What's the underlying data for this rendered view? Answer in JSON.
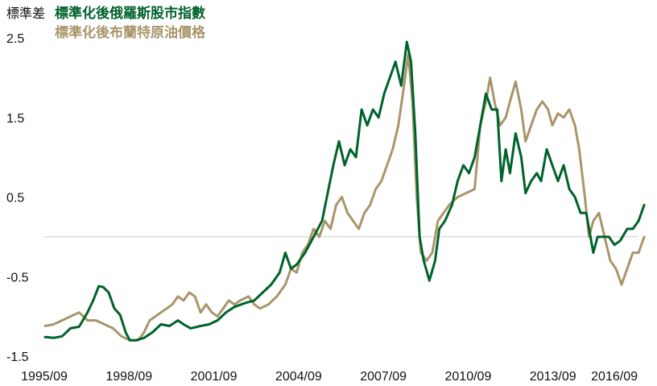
{
  "chart_data": {
    "type": "line",
    "ylabel": "標準差",
    "ylim": [
      -1.5,
      2.5
    ],
    "yticks": [
      2.5,
      1.5,
      0.5,
      -0.5,
      -1.5
    ],
    "ytick_labels": [
      "2.5",
      "1.5",
      "0.5",
      "-0.5",
      "-1.5"
    ],
    "xlim": [
      1995.67,
      2016.67
    ],
    "xticks": [
      1995.67,
      1998.67,
      2001.67,
      2004.67,
      2007.67,
      2010.67,
      2013.67,
      2016.67
    ],
    "xtick_labels": [
      "1995/09",
      "1998/09",
      "2001/09",
      "2004/09",
      "2007/09",
      "2010/09",
      "2013/09",
      "2016/09"
    ],
    "zero_line": true,
    "grid": false,
    "legend_position": "top-left",
    "series": [
      {
        "name": "標準化後俄羅斯股市指數",
        "color": "#00622B",
        "points": [
          [
            1995.7,
            -1.26
          ],
          [
            1996.0,
            -1.27
          ],
          [
            1996.3,
            -1.25
          ],
          [
            1996.6,
            -1.15
          ],
          [
            1996.9,
            -1.13
          ],
          [
            1997.2,
            -0.95
          ],
          [
            1997.4,
            -0.8
          ],
          [
            1997.6,
            -0.62
          ],
          [
            1997.75,
            -0.63
          ],
          [
            1997.95,
            -0.7
          ],
          [
            1998.15,
            -0.9
          ],
          [
            1998.35,
            -0.98
          ],
          [
            1998.55,
            -1.2
          ],
          [
            1998.7,
            -1.3
          ],
          [
            1998.9,
            -1.3
          ],
          [
            1999.2,
            -1.27
          ],
          [
            1999.5,
            -1.2
          ],
          [
            1999.8,
            -1.1
          ],
          [
            2000.1,
            -1.12
          ],
          [
            2000.4,
            -1.05
          ],
          [
            2000.6,
            -1.1
          ],
          [
            2000.85,
            -1.15
          ],
          [
            2001.2,
            -1.12
          ],
          [
            2001.5,
            -1.1
          ],
          [
            2001.8,
            -1.05
          ],
          [
            2002.1,
            -0.95
          ],
          [
            2002.4,
            -0.88
          ],
          [
            2002.8,
            -0.83
          ],
          [
            2003.1,
            -0.8
          ],
          [
            2003.4,
            -0.7
          ],
          [
            2003.7,
            -0.6
          ],
          [
            2004.0,
            -0.45
          ],
          [
            2004.2,
            -0.2
          ],
          [
            2004.4,
            -0.4
          ],
          [
            2004.6,
            -0.35
          ],
          [
            2004.9,
            -0.2
          ],
          [
            2005.2,
            0.0
          ],
          [
            2005.5,
            0.2
          ],
          [
            2005.7,
            0.55
          ],
          [
            2005.9,
            0.9
          ],
          [
            2006.1,
            1.2
          ],
          [
            2006.3,
            0.9
          ],
          [
            2006.5,
            1.1
          ],
          [
            2006.7,
            1.0
          ],
          [
            2006.9,
            1.6
          ],
          [
            2007.1,
            1.4
          ],
          [
            2007.3,
            1.6
          ],
          [
            2007.5,
            1.5
          ],
          [
            2007.7,
            1.8
          ],
          [
            2007.9,
            2.0
          ],
          [
            2008.1,
            2.2
          ],
          [
            2008.3,
            1.9
          ],
          [
            2008.5,
            2.45
          ],
          [
            2008.65,
            2.2
          ],
          [
            2008.8,
            1.3
          ],
          [
            2008.95,
            0.0
          ],
          [
            2009.1,
            -0.3
          ],
          [
            2009.3,
            -0.55
          ],
          [
            2009.5,
            -0.3
          ],
          [
            2009.65,
            0.1
          ],
          [
            2009.85,
            0.2
          ],
          [
            2010.1,
            0.4
          ],
          [
            2010.3,
            0.7
          ],
          [
            2010.5,
            0.9
          ],
          [
            2010.7,
            0.8
          ],
          [
            2010.9,
            1.0
          ],
          [
            2011.1,
            1.4
          ],
          [
            2011.3,
            1.8
          ],
          [
            2011.5,
            1.6
          ],
          [
            2011.7,
            1.6
          ],
          [
            2011.85,
            0.7
          ],
          [
            2012.0,
            1.1
          ],
          [
            2012.15,
            0.8
          ],
          [
            2012.35,
            1.3
          ],
          [
            2012.55,
            1.0
          ],
          [
            2012.7,
            0.55
          ],
          [
            2012.9,
            0.7
          ],
          [
            2013.1,
            0.8
          ],
          [
            2013.25,
            0.7
          ],
          [
            2013.45,
            1.1
          ],
          [
            2013.65,
            0.9
          ],
          [
            2013.85,
            0.7
          ],
          [
            2014.05,
            0.9
          ],
          [
            2014.25,
            0.6
          ],
          [
            2014.45,
            0.5
          ],
          [
            2014.65,
            0.3
          ],
          [
            2014.85,
            0.3
          ],
          [
            2015.0,
            0.0
          ],
          [
            2015.1,
            -0.2
          ],
          [
            2015.25,
            0.0
          ],
          [
            2015.45,
            0.0
          ],
          [
            2015.65,
            0.0
          ],
          [
            2015.85,
            -0.1
          ],
          [
            2016.05,
            -0.05
          ],
          [
            2016.3,
            0.1
          ],
          [
            2016.5,
            0.1
          ],
          [
            2016.7,
            0.2
          ],
          [
            2016.9,
            0.4
          ]
        ]
      },
      {
        "name": "標準化後布蘭特原油價格",
        "color": "#A8966A",
        "points": [
          [
            1995.7,
            -1.12
          ],
          [
            1996.0,
            -1.1
          ],
          [
            1996.3,
            -1.05
          ],
          [
            1996.6,
            -1.0
          ],
          [
            1996.9,
            -0.95
          ],
          [
            1997.2,
            -1.05
          ],
          [
            1997.5,
            -1.05
          ],
          [
            1997.8,
            -1.1
          ],
          [
            1998.1,
            -1.15
          ],
          [
            1998.4,
            -1.25
          ],
          [
            1998.7,
            -1.3
          ],
          [
            1999.0,
            -1.3
          ],
          [
            1999.2,
            -1.2
          ],
          [
            1999.4,
            -1.05
          ],
          [
            1999.6,
            -1.0
          ],
          [
            1999.8,
            -0.95
          ],
          [
            2000.0,
            -0.9
          ],
          [
            2000.2,
            -0.85
          ],
          [
            2000.4,
            -0.75
          ],
          [
            2000.6,
            -0.8
          ],
          [
            2000.8,
            -0.7
          ],
          [
            2001.0,
            -0.75
          ],
          [
            2001.2,
            -0.95
          ],
          [
            2001.4,
            -0.85
          ],
          [
            2001.6,
            -0.95
          ],
          [
            2001.8,
            -1.0
          ],
          [
            2002.0,
            -0.9
          ],
          [
            2002.2,
            -0.8
          ],
          [
            2002.4,
            -0.85
          ],
          [
            2002.6,
            -0.8
          ],
          [
            2002.9,
            -0.75
          ],
          [
            2003.1,
            -0.85
          ],
          [
            2003.3,
            -0.9
          ],
          [
            2003.6,
            -0.85
          ],
          [
            2003.9,
            -0.75
          ],
          [
            2004.2,
            -0.6
          ],
          [
            2004.4,
            -0.4
          ],
          [
            2004.6,
            -0.45
          ],
          [
            2004.8,
            -0.2
          ],
          [
            2005.0,
            -0.1
          ],
          [
            2005.2,
            0.1
          ],
          [
            2005.4,
            0.0
          ],
          [
            2005.6,
            0.2
          ],
          [
            2005.8,
            0.1
          ],
          [
            2006.0,
            0.4
          ],
          [
            2006.2,
            0.5
          ],
          [
            2006.4,
            0.3
          ],
          [
            2006.6,
            0.2
          ],
          [
            2006.8,
            0.1
          ],
          [
            2007.0,
            0.3
          ],
          [
            2007.2,
            0.4
          ],
          [
            2007.4,
            0.6
          ],
          [
            2007.6,
            0.7
          ],
          [
            2007.8,
            0.9
          ],
          [
            2008.0,
            1.1
          ],
          [
            2008.2,
            1.4
          ],
          [
            2008.4,
            1.9
          ],
          [
            2008.55,
            2.3
          ],
          [
            2008.7,
            1.7
          ],
          [
            2008.85,
            0.5
          ],
          [
            2009.0,
            -0.2
          ],
          [
            2009.2,
            -0.3
          ],
          [
            2009.4,
            -0.2
          ],
          [
            2009.6,
            0.2
          ],
          [
            2009.8,
            0.3
          ],
          [
            2010.0,
            0.4
          ],
          [
            2010.3,
            0.5
          ],
          [
            2010.6,
            0.55
          ],
          [
            2010.9,
            0.6
          ],
          [
            2011.1,
            1.4
          ],
          [
            2011.3,
            1.7
          ],
          [
            2011.45,
            2.0
          ],
          [
            2011.6,
            1.7
          ],
          [
            2011.8,
            1.4
          ],
          [
            2012.0,
            1.5
          ],
          [
            2012.15,
            1.7
          ],
          [
            2012.35,
            1.95
          ],
          [
            2012.55,
            1.6
          ],
          [
            2012.7,
            1.2
          ],
          [
            2012.9,
            1.4
          ],
          [
            2013.1,
            1.6
          ],
          [
            2013.3,
            1.7
          ],
          [
            2013.5,
            1.6
          ],
          [
            2013.65,
            1.4
          ],
          [
            2013.85,
            1.55
          ],
          [
            2014.05,
            1.5
          ],
          [
            2014.25,
            1.6
          ],
          [
            2014.45,
            1.4
          ],
          [
            2014.6,
            1.1
          ],
          [
            2014.8,
            0.5
          ],
          [
            2014.95,
            0.0
          ],
          [
            2015.1,
            0.2
          ],
          [
            2015.3,
            0.3
          ],
          [
            2015.5,
            0.0
          ],
          [
            2015.7,
            -0.3
          ],
          [
            2015.9,
            -0.4
          ],
          [
            2016.1,
            -0.6
          ],
          [
            2016.3,
            -0.4
          ],
          [
            2016.5,
            -0.2
          ],
          [
            2016.7,
            -0.2
          ],
          [
            2016.9,
            0.0
          ]
        ]
      }
    ]
  }
}
